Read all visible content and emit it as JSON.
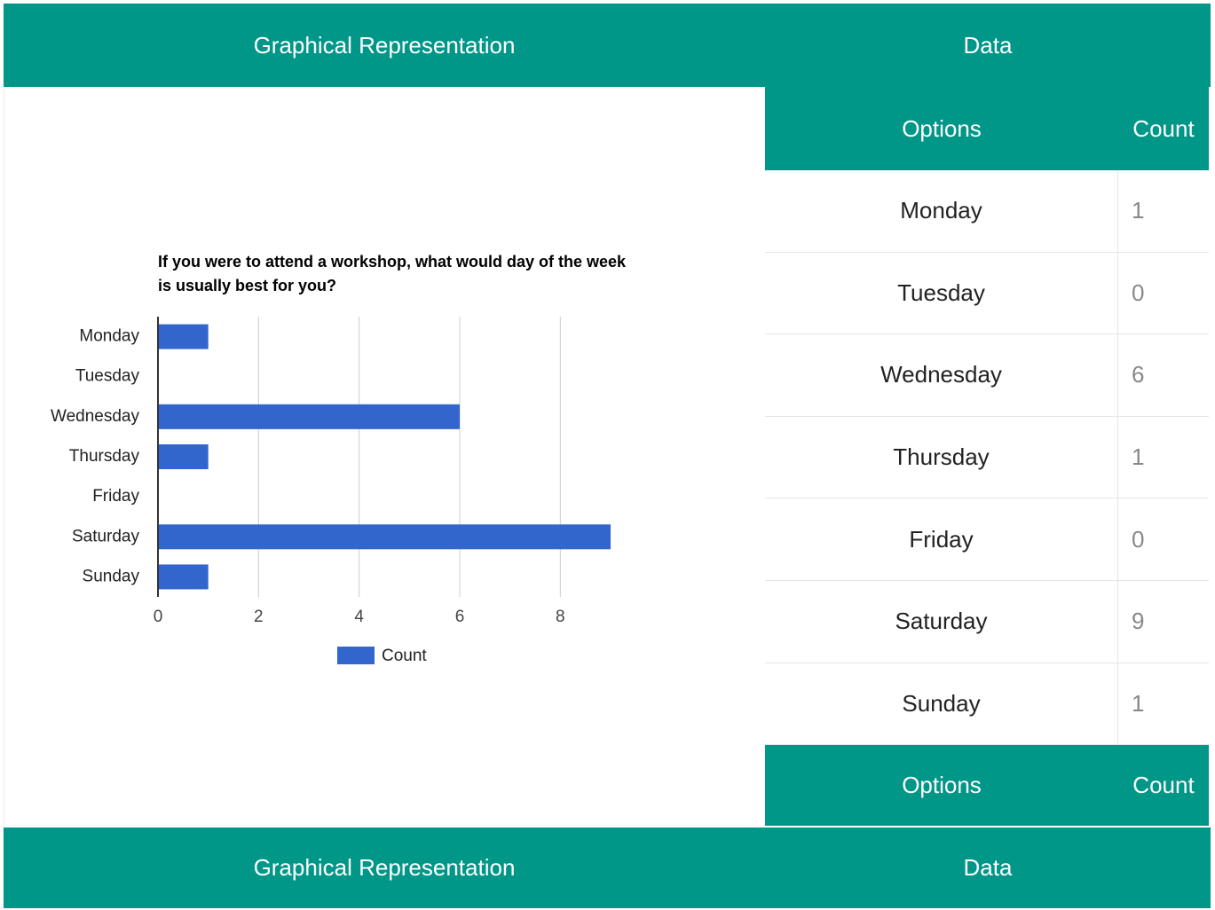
{
  "header": [
    "Graphical Representation",
    "Data"
  ],
  "chart_data": {
    "type": "bar",
    "title": "If you were to attend a workshop, what would day of the week is usually best for you?",
    "categories": [
      "Monday",
      "Tuesday",
      "Wednesday",
      "Thursday",
      "Friday",
      "Saturday",
      "Sunday"
    ],
    "series": [
      {
        "name": "Count",
        "color": "#3366cc",
        "values": [
          1,
          0,
          6,
          1,
          0,
          9,
          1
        ]
      }
    ],
    "xlim": [
      0,
      9
    ],
    "xticks": [
      0,
      2,
      4,
      6,
      8
    ],
    "grid": true,
    "legend": "bottom"
  },
  "table": {
    "columns": [
      "Options",
      "Count"
    ],
    "rows": [
      [
        "Monday",
        1
      ],
      [
        "Tuesday",
        0
      ],
      [
        "Wednesday",
        6
      ],
      [
        "Thursday",
        1
      ],
      [
        "Friday",
        0
      ],
      [
        "Saturday",
        9
      ],
      [
        "Sunday",
        1
      ]
    ],
    "footer": [
      "Options",
      "Count"
    ]
  },
  "footer": [
    "Graphical Representation",
    "Data"
  ]
}
